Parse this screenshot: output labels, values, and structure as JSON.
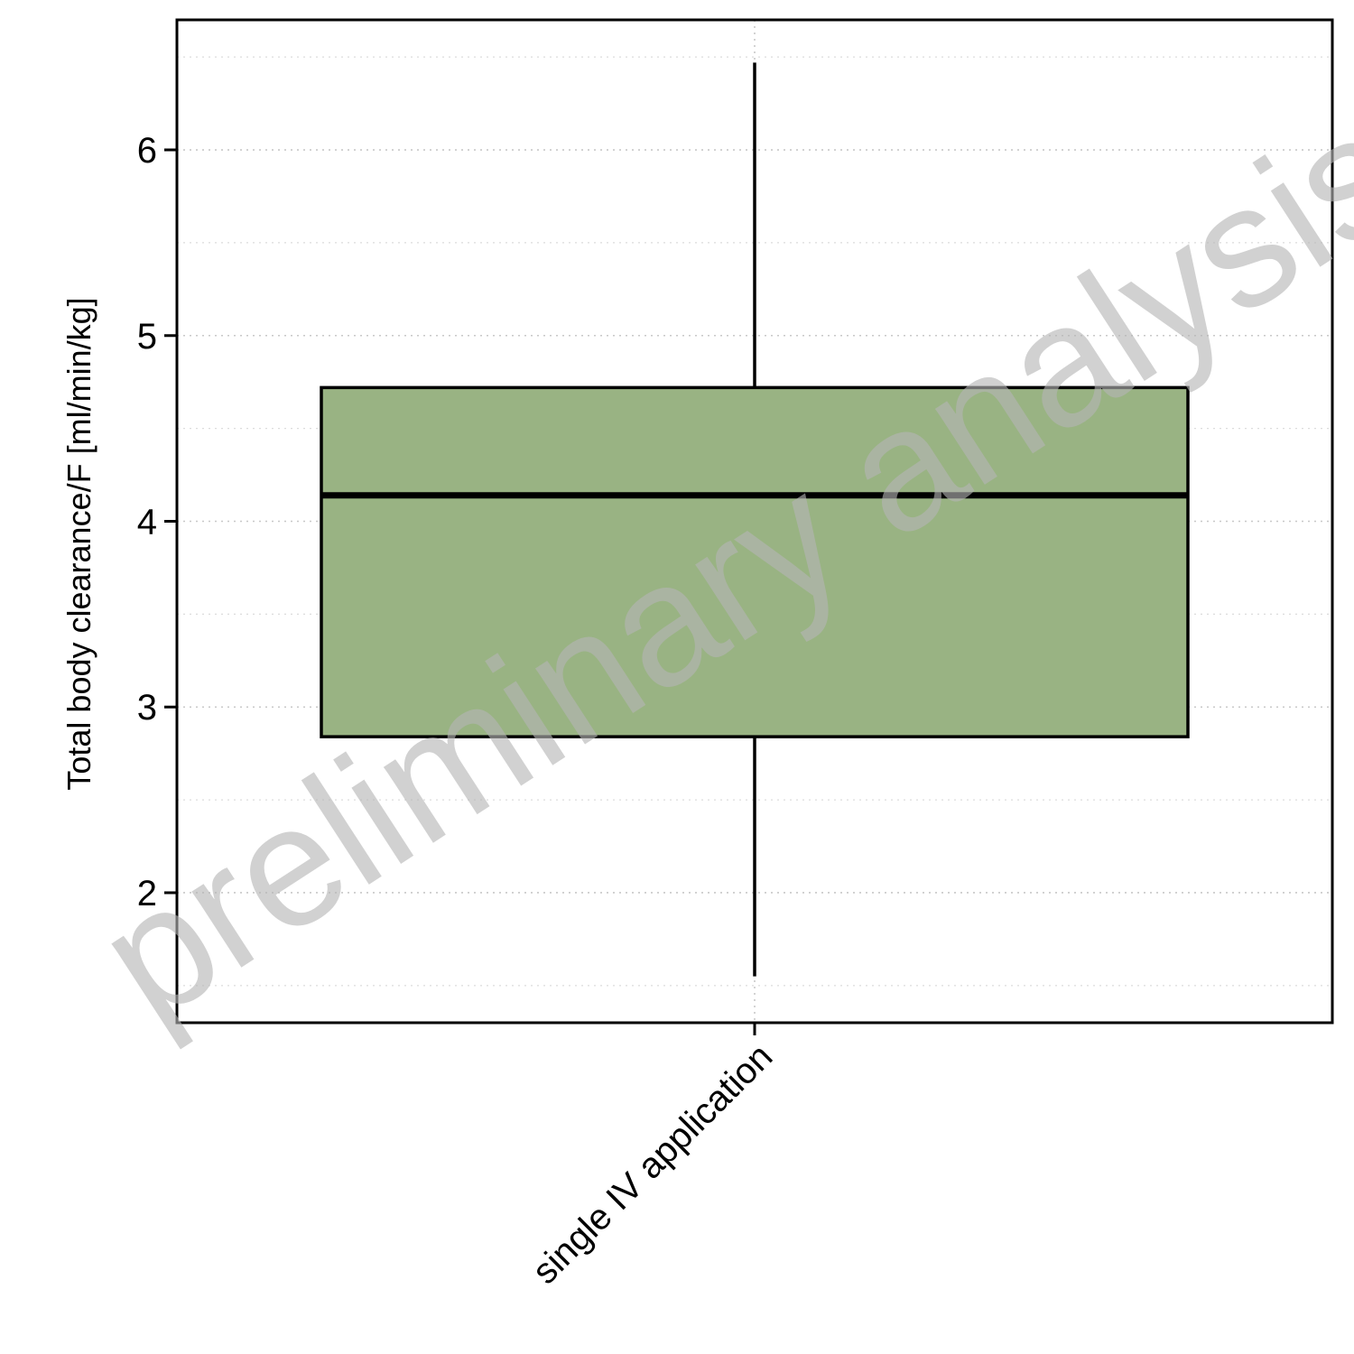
{
  "chart_data": {
    "type": "box",
    "categories": [
      "single IV application"
    ],
    "ylabel": "Total body clearance/F [ml/min/kg]",
    "ylim": [
      1.3,
      6.7
    ],
    "yticks": [
      2,
      3,
      4,
      5,
      6
    ],
    "yminor": [
      1.5,
      2.5,
      3.5,
      4.5,
      5.5,
      6.5
    ],
    "grid": true,
    "boxes": [
      {
        "category": "single IV application",
        "whisker_low": 1.55,
        "q1": 2.84,
        "median": 4.14,
        "q3": 4.72,
        "whisker_high": 6.47
      }
    ],
    "colors": {
      "box_fill": "#99b383",
      "box_stroke": "#000000"
    },
    "watermark": "preliminary analysis"
  }
}
